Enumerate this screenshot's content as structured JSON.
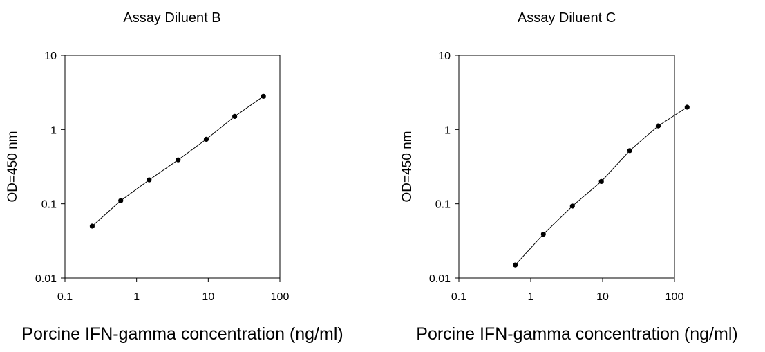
{
  "chart_data": [
    {
      "type": "line",
      "title": "Assay Diluent B",
      "xlabel": "Porcine IFN-gamma concentration (ng/ml)",
      "ylabel": "OD=450 nm",
      "x_scale": "log",
      "y_scale": "log",
      "xlim": [
        0.1,
        100
      ],
      "ylim": [
        0.01,
        10
      ],
      "x_ticks": [
        "0.1",
        "1",
        "10",
        "100"
      ],
      "y_ticks": [
        "0.01",
        "0.1",
        "1",
        "10"
      ],
      "grid": false,
      "series": [
        {
          "x": [
            0.24,
            0.6,
            1.5,
            3.8,
            9.4,
            23.4,
            59
          ],
          "y": [
            0.05,
            0.11,
            0.21,
            0.39,
            0.74,
            1.5,
            2.8
          ]
        }
      ]
    },
    {
      "type": "line",
      "title": "Assay Diluent C",
      "xlabel": "Porcine IFN-gamma concentration (ng/ml)",
      "ylabel": "OD=450 nm",
      "x_scale": "log",
      "y_scale": "log",
      "xlim": [
        0.1,
        100
      ],
      "ylim": [
        0.01,
        10
      ],
      "x_ticks": [
        "0.1",
        "1",
        "10",
        "100"
      ],
      "y_ticks": [
        "0.01",
        "0.1",
        "1",
        "10"
      ],
      "grid": false,
      "series": [
        {
          "x": [
            0.61,
            1.5,
            3.8,
            9.6,
            23.8,
            59.5,
            150
          ],
          "y": [
            0.015,
            0.039,
            0.093,
            0.2,
            0.52,
            1.12,
            2.0
          ]
        }
      ]
    }
  ]
}
